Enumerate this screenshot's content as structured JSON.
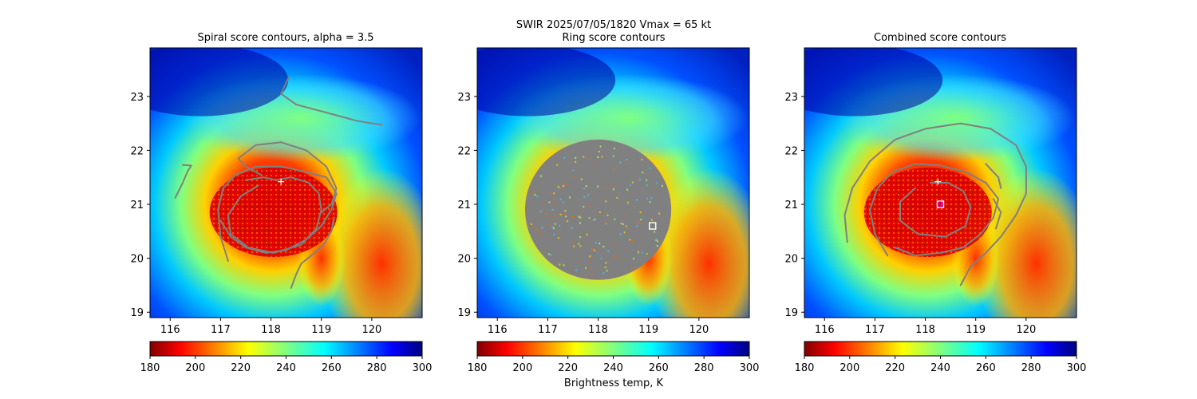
{
  "figure": {
    "suptitle_line1": "SWIR  2025/07/05/1820    Vmax = 65 kt",
    "colorbar_label": "Brightness temp, K"
  },
  "chart_data": [
    {
      "type": "heatmap",
      "title": "Spiral score contours, alpha =  3.5",
      "xlim": [
        115.6,
        121.0
      ],
      "ylim": [
        18.9,
        23.9
      ],
      "xticks": [
        "116",
        "117",
        "118",
        "119",
        "120"
      ],
      "yticks": [
        "19",
        "20",
        "21",
        "22",
        "23"
      ],
      "colormap": "jet_r",
      "clim": [
        180,
        300
      ],
      "colorbar_ticks": [
        "180",
        "200",
        "220",
        "240",
        "260",
        "280",
        "300"
      ],
      "center_marker": {
        "type": "plus",
        "x": 118.2,
        "y": 21.42,
        "color": "#ffffff"
      },
      "contour_color": "#808080",
      "contours": [
        [
          [
            116.1,
            21.12
          ],
          [
            116.25,
            21.4
          ],
          [
            116.35,
            21.62
          ],
          [
            116.42,
            21.72
          ],
          [
            116.25,
            21.73
          ]
        ],
        [
          [
            118.35,
            23.35
          ],
          [
            118.2,
            23.05
          ],
          [
            118.5,
            22.85
          ],
          [
            118.9,
            22.75
          ],
          [
            119.3,
            22.65
          ],
          [
            119.7,
            22.55
          ],
          [
            120.0,
            22.5
          ],
          [
            120.2,
            22.48
          ]
        ],
        [
          [
            117.15,
            19.95
          ],
          [
            117.0,
            20.4
          ],
          [
            116.95,
            20.9
          ],
          [
            117.05,
            21.3
          ],
          [
            117.3,
            21.55
          ],
          [
            117.7,
            21.7
          ],
          [
            118.2,
            21.7
          ],
          [
            118.7,
            21.6
          ],
          [
            119.1,
            21.5
          ],
          [
            119.3,
            21.2
          ],
          [
            119.2,
            20.9
          ],
          [
            119.0,
            20.6
          ],
          [
            118.7,
            20.35
          ],
          [
            118.3,
            20.15
          ],
          [
            117.9,
            20.1
          ],
          [
            117.5,
            20.2
          ],
          [
            117.2,
            20.4
          ],
          [
            117.0,
            20.7
          ]
        ],
        [
          [
            117.75,
            21.35
          ],
          [
            117.4,
            21.15
          ],
          [
            117.15,
            20.8
          ],
          [
            117.2,
            20.45
          ],
          [
            117.55,
            20.2
          ],
          [
            118.05,
            20.1
          ],
          [
            118.6,
            20.25
          ],
          [
            118.9,
            20.55
          ],
          [
            119.0,
            20.9
          ],
          [
            118.95,
            21.2
          ],
          [
            118.75,
            21.4
          ],
          [
            118.4,
            21.5
          ],
          [
            118.1,
            21.45
          ],
          [
            117.85,
            21.5
          ],
          [
            117.5,
            21.45
          ]
        ],
        [
          [
            117.8,
            21.55
          ],
          [
            117.5,
            21.7
          ],
          [
            117.35,
            21.85
          ],
          [
            117.7,
            22.1
          ],
          [
            118.2,
            22.15
          ],
          [
            118.7,
            22.0
          ],
          [
            119.1,
            21.7
          ],
          [
            119.3,
            21.3
          ],
          [
            119.2,
            21.0
          ],
          [
            119.0,
            20.85
          ]
        ],
        [
          [
            118.4,
            19.45
          ],
          [
            118.5,
            19.7
          ],
          [
            118.6,
            19.9
          ],
          [
            118.8,
            20.05
          ],
          [
            119.05,
            20.25
          ],
          [
            119.2,
            20.5
          ],
          [
            119.25,
            20.75
          ]
        ]
      ],
      "boxes": [],
      "colorbar_label": ""
    },
    {
      "type": "heatmap",
      "title": "Ring score contours",
      "xlim": [
        115.6,
        121.0
      ],
      "ylim": [
        18.9,
        23.9
      ],
      "xticks": [
        "116",
        "117",
        "118",
        "119",
        "120"
      ],
      "yticks": [
        "19",
        "20",
        "21",
        "22",
        "23"
      ],
      "colormap": "jet_r",
      "clim": [
        180,
        300
      ],
      "colorbar_ticks": [
        "180",
        "200",
        "220",
        "240",
        "260",
        "280",
        "300"
      ],
      "center_marker": null,
      "ring_region": {
        "center": [
          118.0,
          20.9
        ],
        "rx": 1.45,
        "ry": 1.3,
        "color": "#808080"
      },
      "contour_color": "#808080",
      "contours": [],
      "boxes": [
        {
          "x": 119.08,
          "y": 20.6,
          "stroke": "#ffffff"
        }
      ],
      "colorbar_label": "Brightness temp, K"
    },
    {
      "type": "heatmap",
      "title": "Combined score contours",
      "xlim": [
        115.6,
        121.0
      ],
      "ylim": [
        18.9,
        23.9
      ],
      "xticks": [
        "116",
        "117",
        "118",
        "119",
        "120"
      ],
      "yticks": [
        "19",
        "20",
        "21",
        "22",
        "23"
      ],
      "colormap": "jet_r",
      "clim": [
        180,
        300
      ],
      "colorbar_ticks": [
        "180",
        "200",
        "220",
        "240",
        "260",
        "280",
        "300"
      ],
      "center_marker": {
        "type": "plus",
        "x": 118.25,
        "y": 21.42,
        "color": "#ffffff"
      },
      "contour_color": "#808080",
      "contours": [
        [
          [
            116.45,
            20.3
          ],
          [
            116.4,
            20.8
          ],
          [
            116.55,
            21.3
          ],
          [
            116.9,
            21.8
          ],
          [
            117.4,
            22.2
          ],
          [
            118.0,
            22.4
          ],
          [
            118.7,
            22.5
          ],
          [
            119.3,
            22.4
          ],
          [
            119.8,
            22.1
          ],
          [
            120.0,
            21.7
          ],
          [
            120.0,
            21.2
          ],
          [
            119.8,
            20.8
          ],
          [
            119.5,
            20.4
          ],
          [
            119.2,
            20.1
          ],
          [
            118.9,
            19.85
          ],
          [
            118.7,
            19.5
          ]
        ],
        [
          [
            117.25,
            20.05
          ],
          [
            117.0,
            20.45
          ],
          [
            116.9,
            20.9
          ],
          [
            117.05,
            21.3
          ],
          [
            117.35,
            21.6
          ],
          [
            117.8,
            21.75
          ],
          [
            118.3,
            21.72
          ],
          [
            118.8,
            21.6
          ],
          [
            119.2,
            21.4
          ],
          [
            119.45,
            21.1
          ],
          [
            119.35,
            20.75
          ],
          [
            119.1,
            20.45
          ],
          [
            118.75,
            20.2
          ],
          [
            118.3,
            20.1
          ],
          [
            117.8,
            20.05
          ],
          [
            117.4,
            20.2
          ]
        ],
        [
          [
            117.8,
            21.3
          ],
          [
            117.5,
            21.05
          ],
          [
            117.5,
            20.7
          ],
          [
            117.85,
            20.45
          ],
          [
            118.4,
            20.4
          ],
          [
            118.8,
            20.6
          ],
          [
            118.9,
            20.95
          ],
          [
            118.75,
            21.25
          ],
          [
            118.45,
            21.4
          ],
          [
            118.1,
            21.4
          ]
        ],
        [
          [
            119.2,
            21.75
          ],
          [
            119.45,
            21.5
          ],
          [
            119.5,
            21.3
          ]
        ],
        [
          [
            119.35,
            21.1
          ],
          [
            119.5,
            20.85
          ],
          [
            119.4,
            20.55
          ]
        ]
      ],
      "boxes": [
        {
          "x": 118.3,
          "y": 21.0,
          "stroke": "#ffffff"
        }
      ],
      "circle_marker": {
        "x": 118.3,
        "y": 21.0,
        "color": "#c000c0"
      },
      "colorbar_label": ""
    }
  ]
}
